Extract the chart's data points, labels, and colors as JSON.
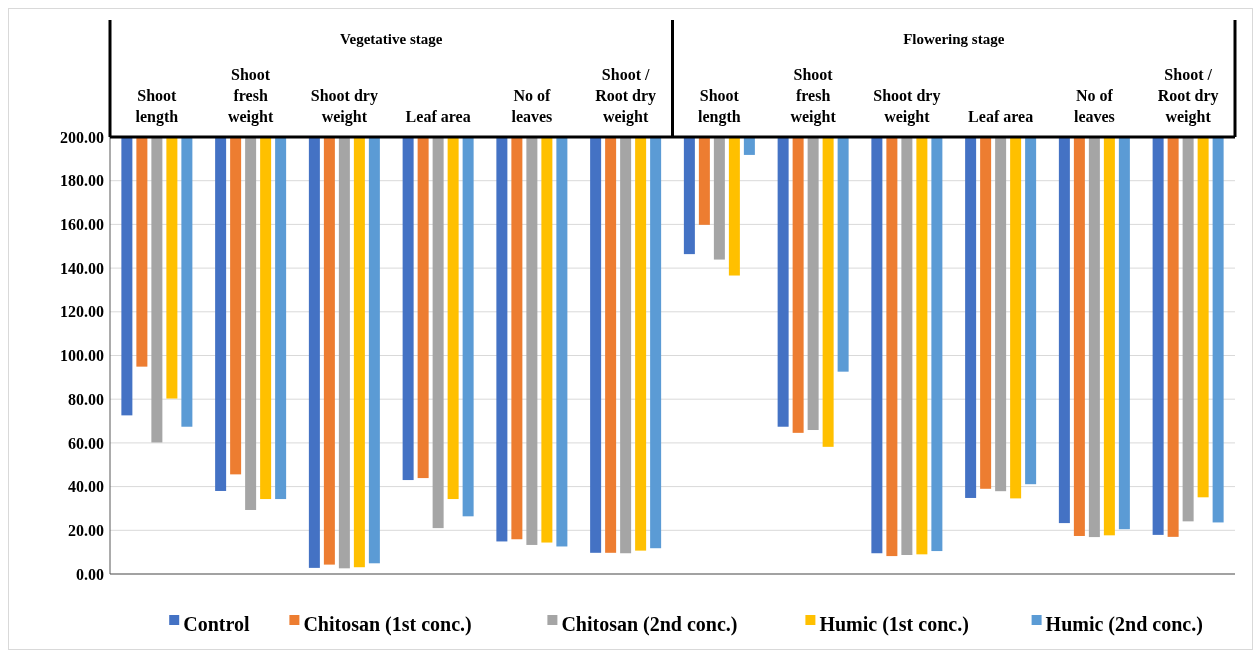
{
  "chart_data": {
    "type": "bar",
    "categories": [
      "Shoot length",
      "Shoot fresh weight",
      "Shoot dry weight",
      "Leaf area",
      "No of leaves",
      "Shoot / Root dry weight",
      "Shoot length",
      "Shoot fresh weight",
      "Shoot dry weight",
      "Leaf area",
      "No of leaves",
      "Shoot / Root dry weight"
    ],
    "annotations": [
      "Vegetative stage",
      "Flowering stage"
    ],
    "series": [
      {
        "name": "Control",
        "color": "#4472c4",
        "base": [
          200,
          200,
          200,
          200,
          200,
          200,
          200,
          200,
          200,
          200,
          200,
          200
        ],
        "values": [
          -127.4,
          -162,
          -197.2,
          -157,
          -185.1,
          -190.3,
          -53.6,
          -132.6,
          -190.5,
          -165.2,
          -176.7,
          -182.1
        ]
      },
      {
        "name": "Chitosan (1st conc.)",
        "color": "#ed7d31",
        "base": [
          200,
          200,
          200,
          200,
          200,
          200,
          200,
          200,
          200,
          200,
          200,
          200
        ],
        "values": [
          -105.1,
          -154.4,
          -195.7,
          -156.1,
          -184.1,
          -190.3,
          -40.2,
          -135.4,
          -191.8,
          -161,
          -182.6,
          -183
        ]
      },
      {
        "name": "Chitosan (2nd conc.)",
        "color": "#a5a5a5",
        "base": [
          200,
          200,
          200,
          200,
          200,
          200,
          200,
          200,
          200,
          200,
          200,
          200
        ],
        "values": [
          -139.8,
          -170.7,
          -197.4,
          -179,
          -186.7,
          -190.5,
          -56.1,
          -134.1,
          -191.3,
          -162.1,
          -183.1,
          -175.9
        ]
      },
      {
        "name": "Humic (1st conc.)",
        "color": "#ffc000",
        "base": [
          200,
          200,
          200,
          200,
          200,
          200,
          200,
          200,
          200,
          200,
          200,
          200
        ],
        "values": [
          -119.7,
          -165.7,
          -196.9,
          -165.7,
          -185.6,
          -189.3,
          -63.4,
          -141.8,
          -191,
          -165.4,
          -182.3,
          -164.9
        ]
      },
      {
        "name": "Humic (2nd conc.)",
        "color": "#5b9bd5",
        "base": [
          200,
          200,
          200,
          200,
          200,
          200,
          200,
          200,
          200,
          200,
          200,
          200
        ],
        "values": [
          -132.6,
          -165.7,
          -195.1,
          -173.6,
          -187.4,
          -188.2,
          -8.2,
          -107.4,
          -189.5,
          -158.9,
          -179.5,
          -176.4
        ]
      }
    ],
    "ylim": [
      0,
      200
    ],
    "yticks": [
      {
        "value": 0,
        "label": "0.00"
      },
      {
        "value": 20,
        "label": "20.00"
      },
      {
        "value": 40,
        "label": "40.00"
      },
      {
        "value": 60,
        "label": "60.00"
      },
      {
        "value": 80,
        "label": "80.00"
      },
      {
        "value": 100,
        "label": "100.00"
      },
      {
        "value": 120,
        "label": "120.00"
      },
      {
        "value": 140,
        "label": "140.00"
      },
      {
        "value": 160,
        "label": "160.00"
      },
      {
        "value": 180,
        "label": "180.00"
      },
      {
        "value": 200,
        "label": "200.00"
      }
    ],
    "grid": "y",
    "legend": "bottom"
  }
}
